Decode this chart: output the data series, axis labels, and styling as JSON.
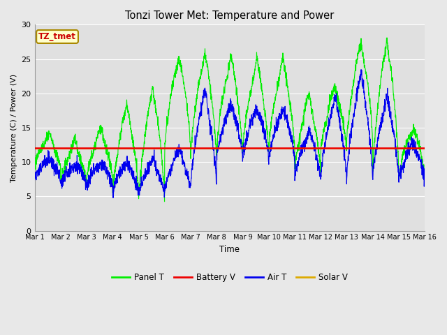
{
  "title": "Tonzi Tower Met: Temperature and Power",
  "xlabel": "Time",
  "ylabel": "Temperature (C) / Power (V)",
  "ylim": [
    0,
    30
  ],
  "xlim": [
    0,
    15
  ],
  "xtick_labels": [
    "Mar 1",
    "Mar 2",
    "Mar 3",
    "Mar 4",
    "Mar 5",
    "Mar 6",
    "Mar 7",
    "Mar 8",
    "Mar 9",
    "Mar 10",
    "Mar 11",
    "Mar 12",
    "Mar 13",
    "Mar 14",
    "Mar 15",
    "Mar 16"
  ],
  "ytick_labels": [
    "0",
    "5",
    "10",
    "15",
    "20",
    "25",
    "30"
  ],
  "ytick_values": [
    0,
    5,
    10,
    15,
    20,
    25,
    30
  ],
  "fig_bg_color": "#e8e8e8",
  "plot_bg_color": "#e0e0e0",
  "grid_color": "#ffffff",
  "legend_items": [
    "Panel T",
    "Battery V",
    "Air T",
    "Solar V"
  ],
  "legend_colors": [
    "#00ee00",
    "#ee0000",
    "#0000ee",
    "#ddaa00"
  ],
  "annotation_text": "TZ_tmet",
  "annotation_fg": "#cc0000",
  "annotation_bg": "#ffffcc",
  "annotation_border": "#aa8800",
  "battery_level": 12.0,
  "solar_level": 12.0
}
